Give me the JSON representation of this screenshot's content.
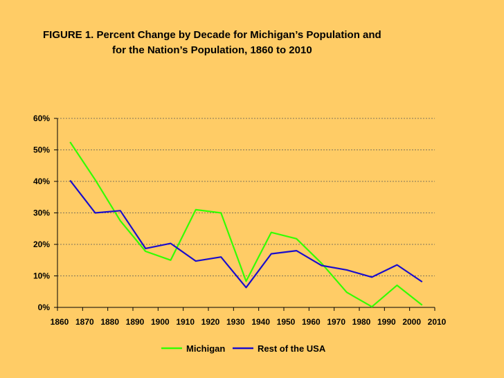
{
  "chart_data": {
    "type": "line",
    "title_line1": "FIGURE 1.  Percent Change by Decade for Michigan’s Population and",
    "title_line2": "for the Nation’s Population, 1860 to 2010",
    "x_tick_labels": [
      "1860",
      "1870",
      "1880",
      "1890",
      "1900",
      "1910",
      "1920",
      "1930",
      "1940",
      "1950",
      "1960",
      "1970",
      "1980",
      "1990",
      "2000",
      "2010"
    ],
    "y_tick_labels": [
      "0%",
      "10%",
      "20%",
      "30%",
      "40%",
      "50%",
      "60%"
    ],
    "ylim": [
      0,
      60
    ],
    "grid": true,
    "legend_position": "bottom",
    "series": [
      {
        "name": "Michigan",
        "color": "#33FF00",
        "values": [
          52.5,
          40.5,
          27.5,
          17.8,
          15.0,
          31.0,
          30.0,
          8.3,
          23.8,
          21.8,
          14.0,
          4.8,
          0.2,
          7.0,
          0.7
        ]
      },
      {
        "name": "Rest of the USA",
        "color": "#1A0DCC",
        "values": [
          40.3,
          30.0,
          30.7,
          18.7,
          20.3,
          14.7,
          16.0,
          6.3,
          17.0,
          18.0,
          13.3,
          11.9,
          9.6,
          13.5,
          8.1
        ]
      }
    ]
  }
}
